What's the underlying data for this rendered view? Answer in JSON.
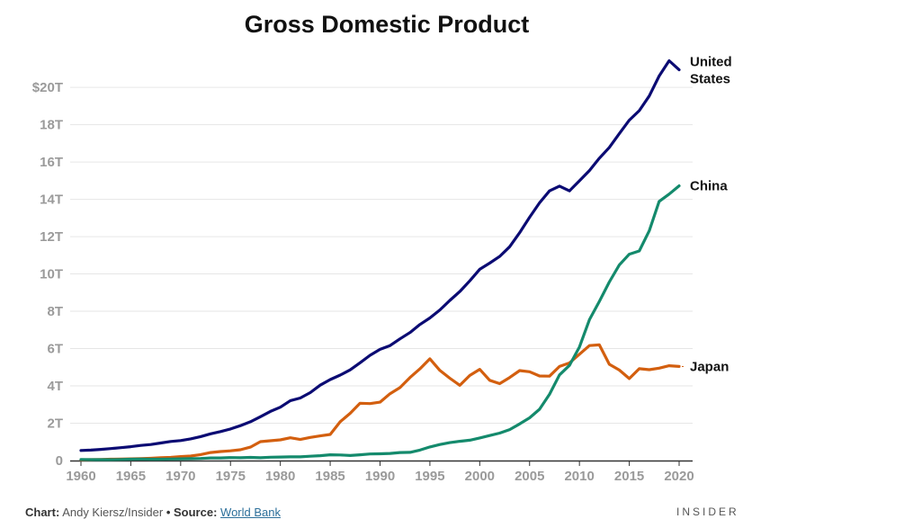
{
  "title": "Gross Domestic Product",
  "footer": {
    "chart_label": "Chart:",
    "chart_author": "Andy Kiersz/Insider",
    "bullet": "•",
    "source_label": "Source:",
    "source_name": "World Bank"
  },
  "brand": "INSIDER",
  "colors": {
    "united_states": "#0b0b73",
    "china": "#148a6c",
    "japan": "#d35f0f",
    "grid": "#e6e6e6",
    "axis": "#333333"
  },
  "chart_data": {
    "type": "line",
    "title": "Gross Domestic Product",
    "xlabel": "",
    "ylabel": "",
    "xlim": [
      1960,
      2020
    ],
    "ylim": [
      0,
      21.5
    ],
    "x_ticks": [
      1960,
      1965,
      1970,
      1975,
      1980,
      1985,
      1990,
      1995,
      2000,
      2005,
      2010,
      2015,
      2020
    ],
    "x_tick_labels": [
      "1960",
      "1965",
      "1970",
      "1975",
      "1980",
      "1985",
      "1990",
      "1995",
      "2000",
      "2005",
      "2010",
      "2015",
      "2020"
    ],
    "y_ticks": [
      0,
      2,
      4,
      6,
      8,
      10,
      12,
      14,
      16,
      18,
      20
    ],
    "y_tick_labels": [
      "0",
      "2T",
      "4T",
      "6T",
      "8T",
      "10T",
      "12T",
      "14T",
      "16T",
      "18T",
      "$20T"
    ],
    "grid": true,
    "legend": "direct labels at line ends (right)",
    "x": [
      1960,
      1961,
      1962,
      1963,
      1964,
      1965,
      1966,
      1967,
      1968,
      1969,
      1970,
      1971,
      1972,
      1973,
      1974,
      1975,
      1976,
      1977,
      1978,
      1979,
      1980,
      1981,
      1982,
      1983,
      1984,
      1985,
      1986,
      1987,
      1988,
      1989,
      1990,
      1991,
      1992,
      1993,
      1994,
      1995,
      1996,
      1997,
      1998,
      1999,
      2000,
      2001,
      2002,
      2003,
      2004,
      2005,
      2006,
      2007,
      2008,
      2009,
      2010,
      2011,
      2012,
      2013,
      2014,
      2015,
      2016,
      2017,
      2018,
      2019,
      2020
    ],
    "series": [
      {
        "name": "United States",
        "label_lines": [
          "United",
          "States"
        ],
        "color_key": "united_states",
        "values": [
          0.54,
          0.56,
          0.6,
          0.64,
          0.69,
          0.74,
          0.81,
          0.86,
          0.94,
          1.02,
          1.07,
          1.16,
          1.28,
          1.43,
          1.55,
          1.69,
          1.87,
          2.08,
          2.35,
          2.63,
          2.86,
          3.21,
          3.35,
          3.64,
          4.04,
          4.34,
          4.58,
          4.86,
          5.24,
          5.64,
          5.96,
          6.16,
          6.52,
          6.86,
          7.29,
          7.64,
          8.07,
          8.58,
          9.06,
          9.63,
          10.25,
          10.58,
          10.94,
          11.46,
          12.21,
          13.04,
          13.81,
          14.45,
          14.71,
          14.45,
          14.99,
          15.54,
          16.2,
          16.78,
          17.52,
          18.24,
          18.75,
          19.54,
          20.61,
          21.43,
          20.94
        ]
      },
      {
        "name": "China",
        "label_lines": [
          "China"
        ],
        "color_key": "china",
        "values": [
          0.06,
          0.05,
          0.05,
          0.05,
          0.06,
          0.07,
          0.08,
          0.07,
          0.07,
          0.08,
          0.09,
          0.1,
          0.11,
          0.14,
          0.14,
          0.16,
          0.15,
          0.17,
          0.15,
          0.18,
          0.19,
          0.2,
          0.2,
          0.23,
          0.26,
          0.31,
          0.3,
          0.27,
          0.31,
          0.35,
          0.36,
          0.38,
          0.43,
          0.44,
          0.56,
          0.73,
          0.86,
          0.96,
          1.03,
          1.09,
          1.21,
          1.34,
          1.47,
          1.66,
          1.96,
          2.29,
          2.75,
          3.55,
          4.59,
          5.1,
          6.09,
          7.55,
          8.53,
          9.57,
          10.48,
          11.06,
          11.23,
          12.31,
          13.89,
          14.28,
          14.72
        ]
      },
      {
        "name": "Japan",
        "label_lines": [
          "Japan"
        ],
        "color_key": "japan",
        "values": [
          0.04,
          0.05,
          0.06,
          0.07,
          0.08,
          0.09,
          0.1,
          0.12,
          0.15,
          0.17,
          0.21,
          0.24,
          0.32,
          0.43,
          0.48,
          0.52,
          0.58,
          0.72,
          1.01,
          1.06,
          1.11,
          1.22,
          1.13,
          1.24,
          1.32,
          1.4,
          2.08,
          2.53,
          3.07,
          3.05,
          3.13,
          3.58,
          3.91,
          4.45,
          4.91,
          5.45,
          4.83,
          4.41,
          4.03,
          4.56,
          4.89,
          4.3,
          4.12,
          4.45,
          4.82,
          4.76,
          4.53,
          4.52,
          5.04,
          5.23,
          5.7,
          6.16,
          6.2,
          5.16,
          4.85,
          4.39,
          4.92,
          4.87,
          4.95,
          5.08,
          5.04
        ]
      }
    ]
  }
}
